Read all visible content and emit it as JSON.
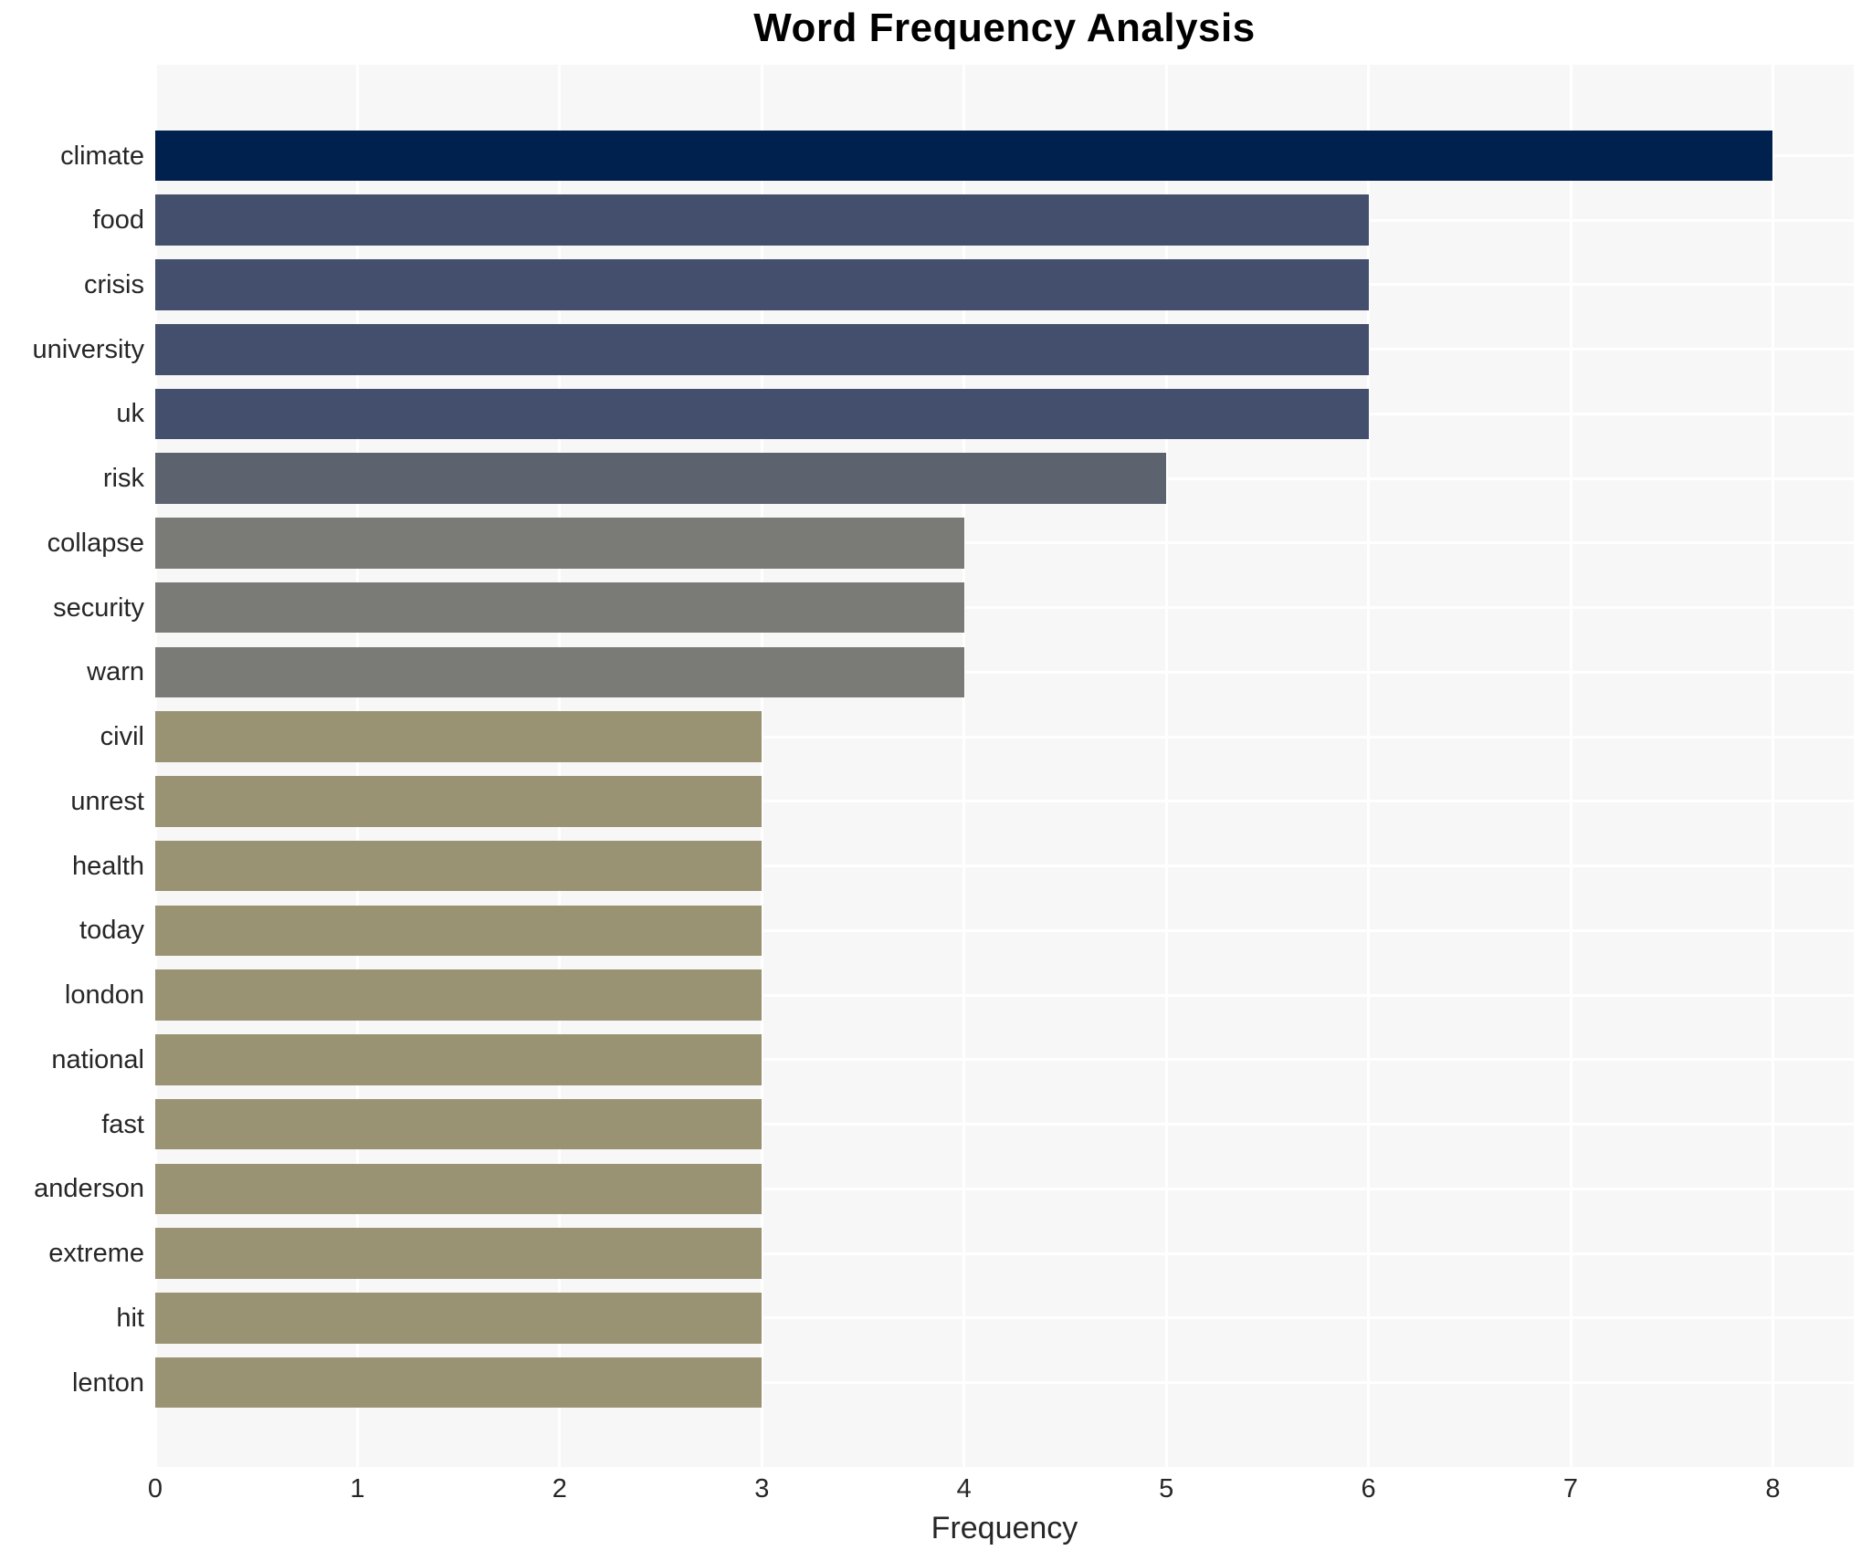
{
  "chart_data": {
    "type": "bar",
    "orientation": "horizontal",
    "title": "Word Frequency Analysis",
    "xlabel": "Frequency",
    "ylabel": "",
    "categories": [
      "climate",
      "food",
      "crisis",
      "university",
      "uk",
      "risk",
      "collapse",
      "security",
      "warn",
      "civil",
      "unrest",
      "health",
      "today",
      "london",
      "national",
      "fast",
      "anderson",
      "extreme",
      "hit",
      "lenton"
    ],
    "values": [
      8,
      6,
      6,
      6,
      6,
      5,
      4,
      4,
      4,
      3,
      3,
      3,
      3,
      3,
      3,
      3,
      3,
      3,
      3,
      3
    ],
    "bar_colors": [
      "#00204d",
      "#434f6d",
      "#434f6d",
      "#434f6d",
      "#434f6d",
      "#5d626f",
      "#7a7a76",
      "#7a7a76",
      "#7a7a76",
      "#999273",
      "#999273",
      "#999273",
      "#999273",
      "#999273",
      "#999273",
      "#999273",
      "#999273",
      "#999273",
      "#999273",
      "#999273"
    ],
    "xticks": [
      "0",
      "1",
      "2",
      "3",
      "4",
      "5",
      "6",
      "7",
      "8"
    ],
    "xlim": [
      0,
      8.4
    ],
    "grid": true,
    "legend": null,
    "colors": {
      "plot_background": "#f7f7f7",
      "figure_background": "#ffffff",
      "gridline": "#ffffff",
      "tick_text": "#262626",
      "title_text": "#000000"
    }
  }
}
